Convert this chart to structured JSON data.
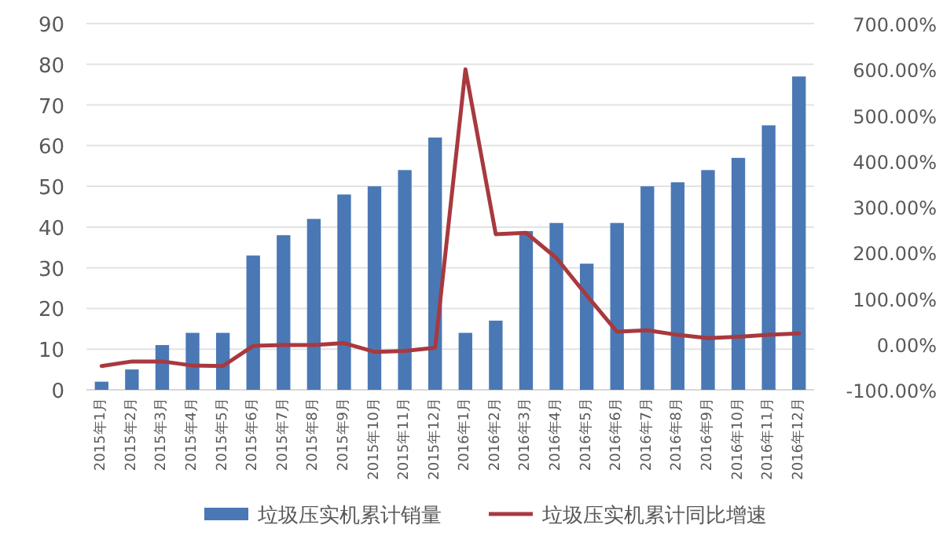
{
  "chart_data": {
    "type": "bar",
    "categories": [
      "2015年1月",
      "2015年2月",
      "2015年3月",
      "2015年4月",
      "2015年5月",
      "2015年6月",
      "2015年7月",
      "2015年8月",
      "2015年9月",
      "2015年10月",
      "2015年11月",
      "2015年12月",
      "2016年1月",
      "2016年2月",
      "2016年3月",
      "2016年4月",
      "2016年5月",
      "2016年6月",
      "2016年7月",
      "2016年8月",
      "2016年9月",
      "2016年10月",
      "2016年11月",
      "2016年12月"
    ],
    "series": [
      {
        "name": "垃圾压实机累计销量",
        "color": "#4a78b5",
        "values": [
          2,
          5,
          11,
          14,
          14,
          33,
          38,
          42,
          48,
          50,
          54,
          62,
          14,
          17,
          39,
          41,
          31,
          41,
          50,
          51,
          54,
          57,
          65,
          77
        ]
      },
      {
        "name": "垃圾压实机累计同比增速",
        "type": "line",
        "axis": "y2",
        "color": "#a8393f",
        "values": [
          -48,
          -38,
          -38,
          -47,
          -48,
          -4,
          -2,
          -2,
          2,
          -17,
          -15,
          -8,
          600,
          240,
          243,
          188,
          106,
          27,
          30,
          20,
          13,
          16,
          20,
          23
        ]
      }
    ],
    "ylim": [
      0,
      90
    ],
    "yticks": [
      0,
      10,
      20,
      30,
      40,
      50,
      60,
      70,
      80,
      90
    ],
    "y2lim": [
      -100,
      700
    ],
    "y2ticks": [
      {
        "value": -100,
        "label": "-100.00%"
      },
      {
        "value": 0,
        "label": "0.00%"
      },
      {
        "value": 100,
        "label": "100.00%"
      },
      {
        "value": 200,
        "label": "200.00%"
      },
      {
        "value": 300,
        "label": "300.00%"
      },
      {
        "value": 400,
        "label": "400.00%"
      },
      {
        "value": 500,
        "label": "500.00%"
      },
      {
        "value": 600,
        "label": "600.00%"
      },
      {
        "value": 700,
        "label": "700.00%"
      }
    ],
    "grid": "y",
    "legend": "bottom",
    "marker": "none",
    "line_style": "solid"
  }
}
